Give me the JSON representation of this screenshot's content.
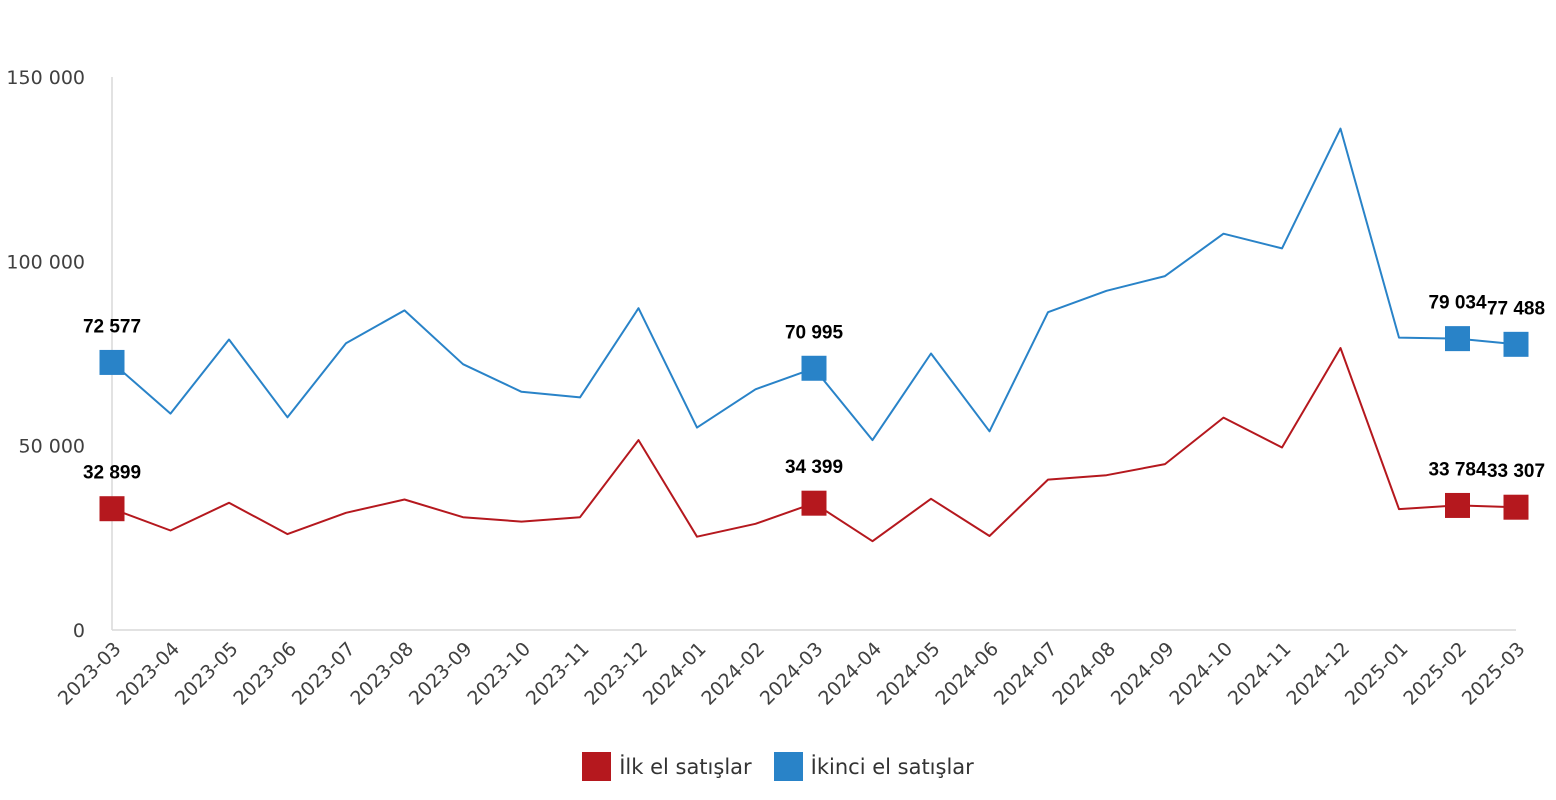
{
  "chart_data": {
    "type": "line",
    "categories": [
      "2023-03",
      "2023-04",
      "2023-05",
      "2023-06",
      "2023-07",
      "2023-08",
      "2023-09",
      "2023-10",
      "2023-11",
      "2023-12",
      "2024-01",
      "2024-02",
      "2024-03",
      "2024-04",
      "2024-05",
      "2024-06",
      "2024-07",
      "2024-08",
      "2024-09",
      "2024-10",
      "2024-11",
      "2024-12",
      "2025-01",
      "2025-02",
      "2025-03"
    ],
    "series": [
      {
        "name": "İlk el satışlar",
        "color": "#b5181e",
        "values": [
          32899,
          27000,
          34500,
          26000,
          31800,
          35400,
          30600,
          29400,
          30600,
          51500,
          25300,
          28800,
          34399,
          24100,
          35600,
          25500,
          40800,
          42000,
          45000,
          57600,
          49500,
          76500,
          32800,
          33784,
          33307
        ],
        "labels": [
          {
            "index": 0,
            "text": "32 899"
          },
          {
            "index": 12,
            "text": "34 399"
          },
          {
            "index": 23,
            "text": "33 784"
          },
          {
            "index": 24,
            "text": "33 307"
          }
        ]
      },
      {
        "name": "İkinci el satışlar",
        "color": "#2983c8",
        "values": [
          72577,
          58700,
          78800,
          57700,
          77800,
          86700,
          72100,
          64600,
          63100,
          87300,
          54900,
          65300,
          70995,
          51500,
          75000,
          53900,
          86200,
          92000,
          96000,
          107500,
          103500,
          136000,
          79300,
          79034,
          77488
        ],
        "labels": [
          {
            "index": 0,
            "text": "72 577"
          },
          {
            "index": 12,
            "text": "70 995"
          },
          {
            "index": 23,
            "text": "79 034"
          },
          {
            "index": 24,
            "text": "77 488"
          }
        ]
      }
    ],
    "yticks": [
      {
        "value": 0,
        "label": "0"
      },
      {
        "value": 50000,
        "label": "50 000"
      },
      {
        "value": 100000,
        "label": "100 000"
      },
      {
        "value": 150000,
        "label": "150 000"
      }
    ],
    "ylim": [
      0,
      150000
    ],
    "title": "",
    "xlabel": "",
    "ylabel": "",
    "grid": false,
    "legend_position": "bottom",
    "axis_color": "#d9d9d9"
  }
}
